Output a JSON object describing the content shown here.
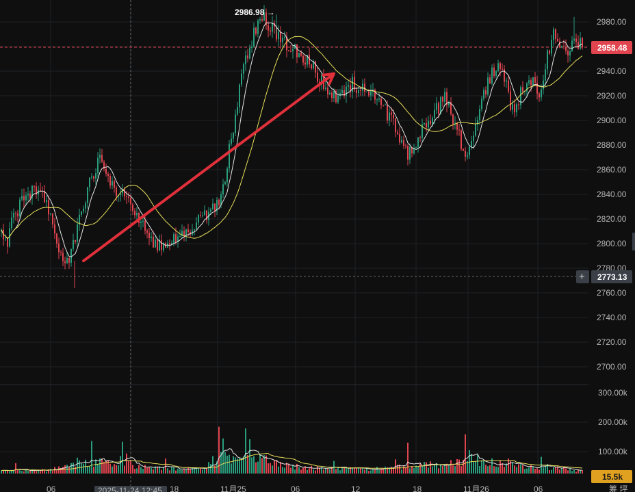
{
  "colors": {
    "background": "#0f0f10",
    "grid": "#1f2023",
    "up": "#2a9d7c",
    "down": "#e0454f",
    "ma_fast": "#e6e6e6",
    "ma_slow": "#e8e05a",
    "arrow": "#e0303a",
    "price_tag": "#e0454f",
    "crosshair_tag": "#3a3f48",
    "volume_tag": "#e0a020"
  },
  "price_axis": {
    "ticks": [
      "2980.00",
      "2960.00",
      "2940.00",
      "2920.00",
      "2900.00",
      "2880.00",
      "2860.00",
      "2840.00",
      "2820.00",
      "2800.00",
      "2780.00",
      "2760.00",
      "2740.00",
      "2720.00",
      "2700.00"
    ],
    "current_price": "2958.48",
    "crosshair_price": "2773.13",
    "high_label": "2986.98 →"
  },
  "volume_axis": {
    "ticks": [
      "300.00k",
      "200.00k",
      "100.00k"
    ],
    "current_volume": "15.5k"
  },
  "time_axis": {
    "labels": [
      "06",
      "2025-11-24 12:45",
      "18",
      "11月25",
      "06",
      "12",
      "18",
      "11月26",
      "06"
    ],
    "corner_label": "筹 坪"
  },
  "chart_data": {
    "type": "candlestick",
    "ylim": [
      2690,
      2990
    ],
    "volume_ylim": [
      0,
      330000
    ],
    "seed": 20251125,
    "price_path": [
      [
        0,
        2810
      ],
      [
        10,
        2800
      ],
      [
        20,
        2822
      ],
      [
        30,
        2832
      ],
      [
        45,
        2840
      ],
      [
        58,
        2845
      ],
      [
        68,
        2835
      ],
      [
        78,
        2810
      ],
      [
        88,
        2795
      ],
      [
        98,
        2786
      ],
      [
        108,
        2800
      ],
      [
        118,
        2822
      ],
      [
        128,
        2845
      ],
      [
        138,
        2858
      ],
      [
        148,
        2870
      ],
      [
        158,
        2855
      ],
      [
        168,
        2842
      ],
      [
        180,
        2840
      ],
      [
        190,
        2832
      ],
      [
        200,
        2822
      ],
      [
        210,
        2812
      ],
      [
        220,
        2800
      ],
      [
        232,
        2797
      ],
      [
        246,
        2800
      ],
      [
        258,
        2804
      ],
      [
        270,
        2807
      ],
      [
        282,
        2812
      ],
      [
        296,
        2822
      ],
      [
        310,
        2826
      ],
      [
        320,
        2836
      ],
      [
        330,
        2858
      ],
      [
        340,
        2892
      ],
      [
        352,
        2930
      ],
      [
        364,
        2960
      ],
      [
        376,
        2976
      ],
      [
        386,
        2982
      ],
      [
        396,
        2976
      ],
      [
        406,
        2968
      ],
      [
        418,
        2962
      ],
      [
        430,
        2958
      ],
      [
        442,
        2952
      ],
      [
        456,
        2944
      ],
      [
        468,
        2934
      ],
      [
        480,
        2924
      ],
      [
        492,
        2916
      ],
      [
        502,
        2920
      ],
      [
        514,
        2930
      ],
      [
        526,
        2926
      ],
      [
        538,
        2922
      ],
      [
        550,
        2918
      ],
      [
        562,
        2910
      ],
      [
        574,
        2897
      ],
      [
        586,
        2886
      ],
      [
        596,
        2872
      ],
      [
        606,
        2882
      ],
      [
        618,
        2892
      ],
      [
        630,
        2902
      ],
      [
        642,
        2912
      ],
      [
        650,
        2918
      ],
      [
        660,
        2906
      ],
      [
        670,
        2888
      ],
      [
        680,
        2874
      ],
      [
        690,
        2886
      ],
      [
        700,
        2906
      ],
      [
        712,
        2930
      ],
      [
        724,
        2944
      ],
      [
        734,
        2940
      ],
      [
        742,
        2922
      ],
      [
        750,
        2906
      ],
      [
        760,
        2920
      ],
      [
        772,
        2936
      ],
      [
        782,
        2930
      ],
      [
        790,
        2922
      ],
      [
        800,
        2955
      ],
      [
        810,
        2972
      ],
      [
        820,
        2962
      ],
      [
        830,
        2954
      ],
      [
        840,
        2966
      ],
      [
        853,
        2958
      ]
    ],
    "volume_profile": [
      [
        0,
        20000
      ],
      [
        60,
        18000
      ],
      [
        100,
        40000
      ],
      [
        130,
        75000
      ],
      [
        150,
        65000
      ],
      [
        180,
        80000
      ],
      [
        200,
        45000
      ],
      [
        240,
        30000
      ],
      [
        280,
        28000
      ],
      [
        300,
        30000
      ],
      [
        320,
        120000
      ],
      [
        340,
        95000
      ],
      [
        360,
        130000
      ],
      [
        380,
        110000
      ],
      [
        400,
        60000
      ],
      [
        430,
        45000
      ],
      [
        470,
        30000
      ],
      [
        520,
        28000
      ],
      [
        560,
        30000
      ],
      [
        600,
        45000
      ],
      [
        640,
        55000
      ],
      [
        670,
        80000
      ],
      [
        690,
        95000
      ],
      [
        710,
        75000
      ],
      [
        740,
        55000
      ],
      [
        780,
        40000
      ],
      [
        800,
        42000
      ],
      [
        830,
        25000
      ],
      [
        853,
        15500
      ]
    ],
    "volume_spikes": [
      [
        22,
        62000
      ],
      [
        112,
        95000
      ],
      [
        134,
        195000
      ],
      [
        178,
        190000
      ],
      [
        185,
        120000
      ],
      [
        242,
        90000
      ],
      [
        320,
        280000
      ],
      [
        326,
        210000
      ],
      [
        358,
        270000
      ],
      [
        364,
        205000
      ],
      [
        410,
        70000
      ],
      [
        488,
        75000
      ],
      [
        578,
        85000
      ],
      [
        596,
        185000
      ],
      [
        680,
        235000
      ],
      [
        686,
        140000
      ],
      [
        744,
        90000
      ],
      [
        790,
        100000
      ]
    ],
    "arrow": {
      "from": [
        2786,
        122
      ],
      "to": [
        2938,
        488
      ]
    }
  }
}
